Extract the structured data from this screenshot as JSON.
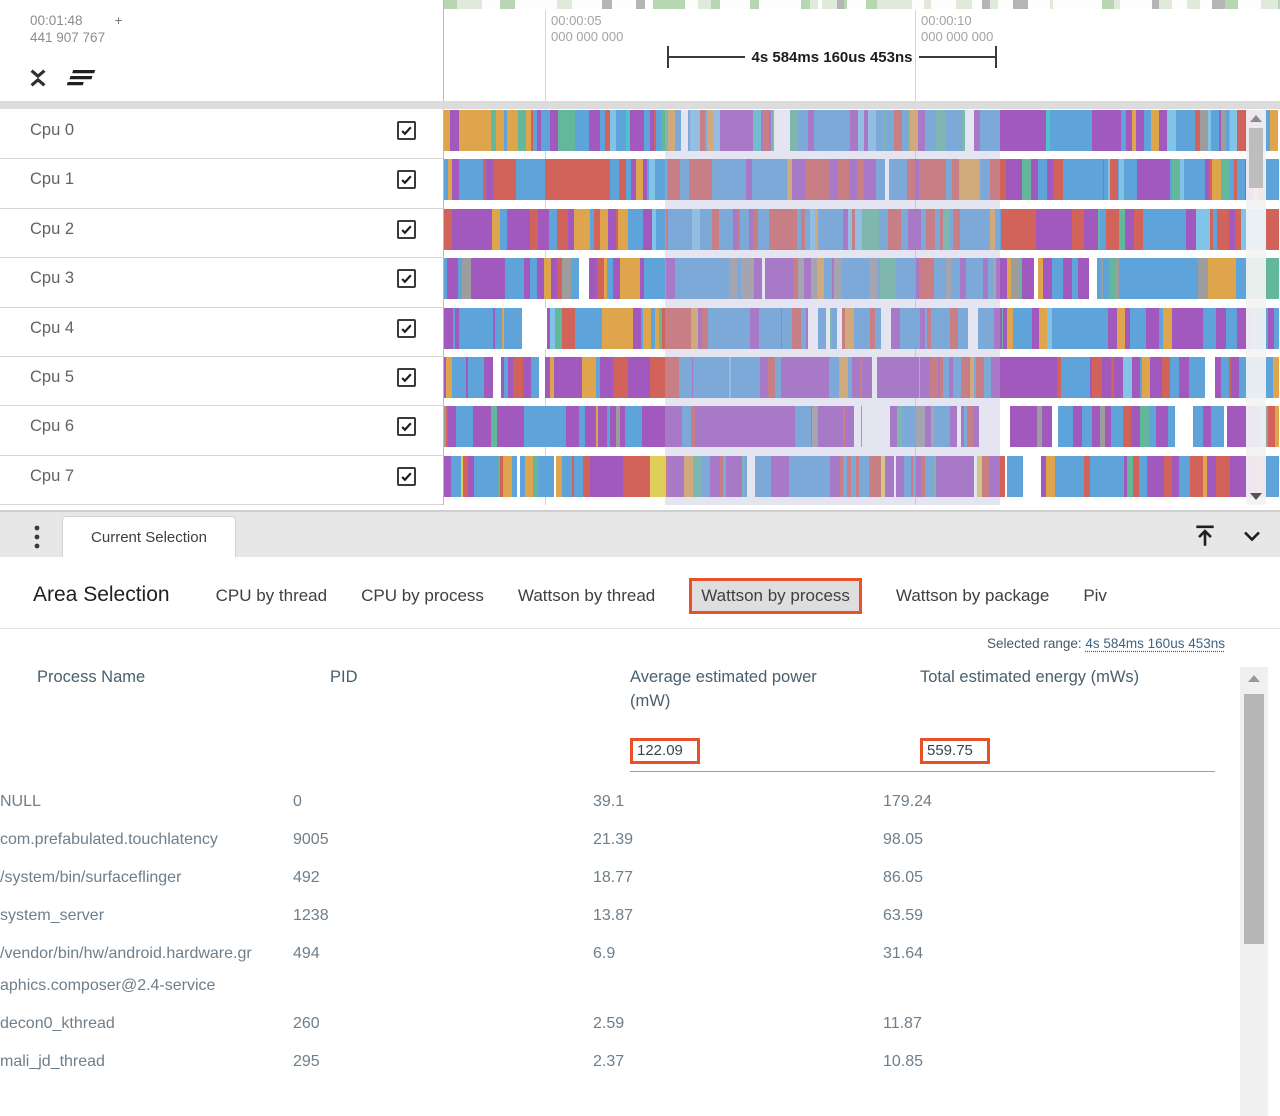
{
  "colors": {
    "annotation": "#e8502a",
    "selection_overlay": "rgba(180,180,215,0.35)",
    "link": "#3e6386",
    "palette": {
      "blue": "#5ea3d9",
      "lightblue": "#82c4e8",
      "purple": "#a159bd",
      "red": "#d2635a",
      "orange": "#dfa54d",
      "teal": "#63b79b",
      "cyan": "#52c2c9",
      "yellow": "#dfcf5a",
      "gray": "#9d9d9d",
      "white": "#ffffff"
    },
    "minimap_palette": {
      "white": "#fdfdfd",
      "palegreen": "#dfeadb",
      "green": "#b7d6b2",
      "gray": "#b5b5b5"
    }
  },
  "timeline": {
    "ruler": {
      "origin_time": "00:01:48",
      "origin_plus": "+",
      "origin_offset": "441 907 767",
      "tick1_time": "00:00:05",
      "tick1_sub": "000 000 000",
      "tick2_time": "00:00:10",
      "tick2_sub": "000 000 000",
      "measurement": "4s 584ms 160us 453ns"
    },
    "icons": {
      "collapse": "unfold-less-icon",
      "sort": "sort-icon",
      "scroll_up": "triangle-up-icon",
      "scroll_down": "triangle-down-icon"
    },
    "minimap_seed": 5,
    "minimap_weights": [
      [
        "white",
        40
      ],
      [
        "palegreen",
        30
      ],
      [
        "green",
        18
      ],
      [
        "gray",
        8
      ]
    ],
    "tracks": [
      {
        "label": "Cpu 0",
        "checked": true,
        "seed": 11,
        "palette": [
          [
            "blue",
            28
          ],
          [
            "lightblue",
            8
          ],
          [
            "purple",
            18
          ],
          [
            "orange",
            13
          ],
          [
            "red",
            10
          ],
          [
            "teal",
            9
          ],
          [
            "cyan",
            5
          ],
          [
            "gray",
            3
          ],
          [
            "white",
            2
          ]
        ]
      },
      {
        "label": "Cpu 1",
        "checked": true,
        "seed": 22,
        "palette": [
          [
            "blue",
            36
          ],
          [
            "red",
            27
          ],
          [
            "purple",
            18
          ],
          [
            "lightblue",
            6
          ],
          [
            "orange",
            5
          ],
          [
            "teal",
            4
          ],
          [
            "white",
            3
          ]
        ]
      },
      {
        "label": "Cpu 2",
        "checked": true,
        "seed": 33,
        "palette": [
          [
            "blue",
            40
          ],
          [
            "red",
            28
          ],
          [
            "purple",
            16
          ],
          [
            "orange",
            6
          ],
          [
            "teal",
            4
          ],
          [
            "lightblue",
            6
          ]
        ]
      },
      {
        "label": "Cpu 3",
        "checked": true,
        "seed": 44,
        "palette": [
          [
            "blue",
            45
          ],
          [
            "purple",
            22
          ],
          [
            "red",
            10
          ],
          [
            "gray",
            9
          ],
          [
            "orange",
            6
          ],
          [
            "teal",
            6
          ],
          [
            "white",
            2
          ]
        ]
      },
      {
        "label": "Cpu 4",
        "checked": true,
        "seed": 55,
        "palette": [
          [
            "blue",
            48
          ],
          [
            "purple",
            26
          ],
          [
            "red",
            7
          ],
          [
            "orange",
            7
          ],
          [
            "teal",
            5
          ],
          [
            "white",
            5
          ],
          [
            "lightblue",
            4
          ]
        ]
      },
      {
        "label": "Cpu 5",
        "checked": true,
        "seed": 66,
        "palette": [
          [
            "purple",
            33
          ],
          [
            "blue",
            27
          ],
          [
            "red",
            14
          ],
          [
            "white",
            8
          ],
          [
            "orange",
            8
          ],
          [
            "yellow",
            4
          ],
          [
            "lightblue",
            4
          ]
        ]
      },
      {
        "label": "Cpu 6",
        "checked": true,
        "seed": 77,
        "palette": [
          [
            "purple",
            40
          ],
          [
            "blue",
            28
          ],
          [
            "gray",
            8
          ],
          [
            "red",
            8
          ],
          [
            "orange",
            6
          ],
          [
            "white",
            4
          ],
          [
            "teal",
            4
          ]
        ]
      },
      {
        "label": "Cpu 7",
        "checked": true,
        "seed": 88,
        "palette": [
          [
            "blue",
            31
          ],
          [
            "purple",
            29
          ],
          [
            "red",
            20
          ],
          [
            "white",
            6
          ],
          [
            "orange",
            6
          ],
          [
            "yellow",
            4
          ],
          [
            "teal",
            4
          ]
        ]
      }
    ]
  },
  "panel": {
    "tab_label": "Current Selection",
    "title": "Area Selection",
    "icons": {
      "menu": "kebab-vertical-icon",
      "expand_top": "vertical-align-top-icon",
      "collapse_panel": "chevron-down-icon"
    },
    "tabs": [
      {
        "label": "CPU by thread"
      },
      {
        "label": "CPU by process"
      },
      {
        "label": "Wattson by thread"
      },
      {
        "label": "Wattson by process",
        "active": true
      },
      {
        "label": "Wattson by package"
      },
      {
        "label": "Piv"
      }
    ]
  },
  "table": {
    "selected_range_label": "Selected range:",
    "selected_range_value": "4s 584ms 160us 453ns",
    "columns": [
      "Process Name",
      "PID",
      "Average estimated power (mW)",
      "Total estimated energy (mWs)"
    ],
    "totals": {
      "power": "122.09",
      "energy": "559.75"
    },
    "rows": [
      {
        "name": "NULL",
        "pid": "0",
        "power": "39.1",
        "energy": "179.24"
      },
      {
        "name": "com.prefabulated.touchlatency",
        "pid": "9005",
        "power": "21.39",
        "energy": "98.05"
      },
      {
        "name": "/system/bin/surfaceflinger",
        "pid": "492",
        "power": "18.77",
        "energy": "86.05"
      },
      {
        "name": "system_server",
        "pid": "1238",
        "power": "13.87",
        "energy": "63.59"
      },
      {
        "name": "/vendor/bin/hw/android.hardware.graphics.composer@2.4-service",
        "pid": "494",
        "power": "6.9",
        "energy": "31.64"
      },
      {
        "name": "decon0_kthread",
        "pid": "260",
        "power": "2.59",
        "energy": "11.87"
      },
      {
        "name": "mali_jd_thread",
        "pid": "295",
        "power": "2.37",
        "energy": "10.85"
      }
    ]
  }
}
